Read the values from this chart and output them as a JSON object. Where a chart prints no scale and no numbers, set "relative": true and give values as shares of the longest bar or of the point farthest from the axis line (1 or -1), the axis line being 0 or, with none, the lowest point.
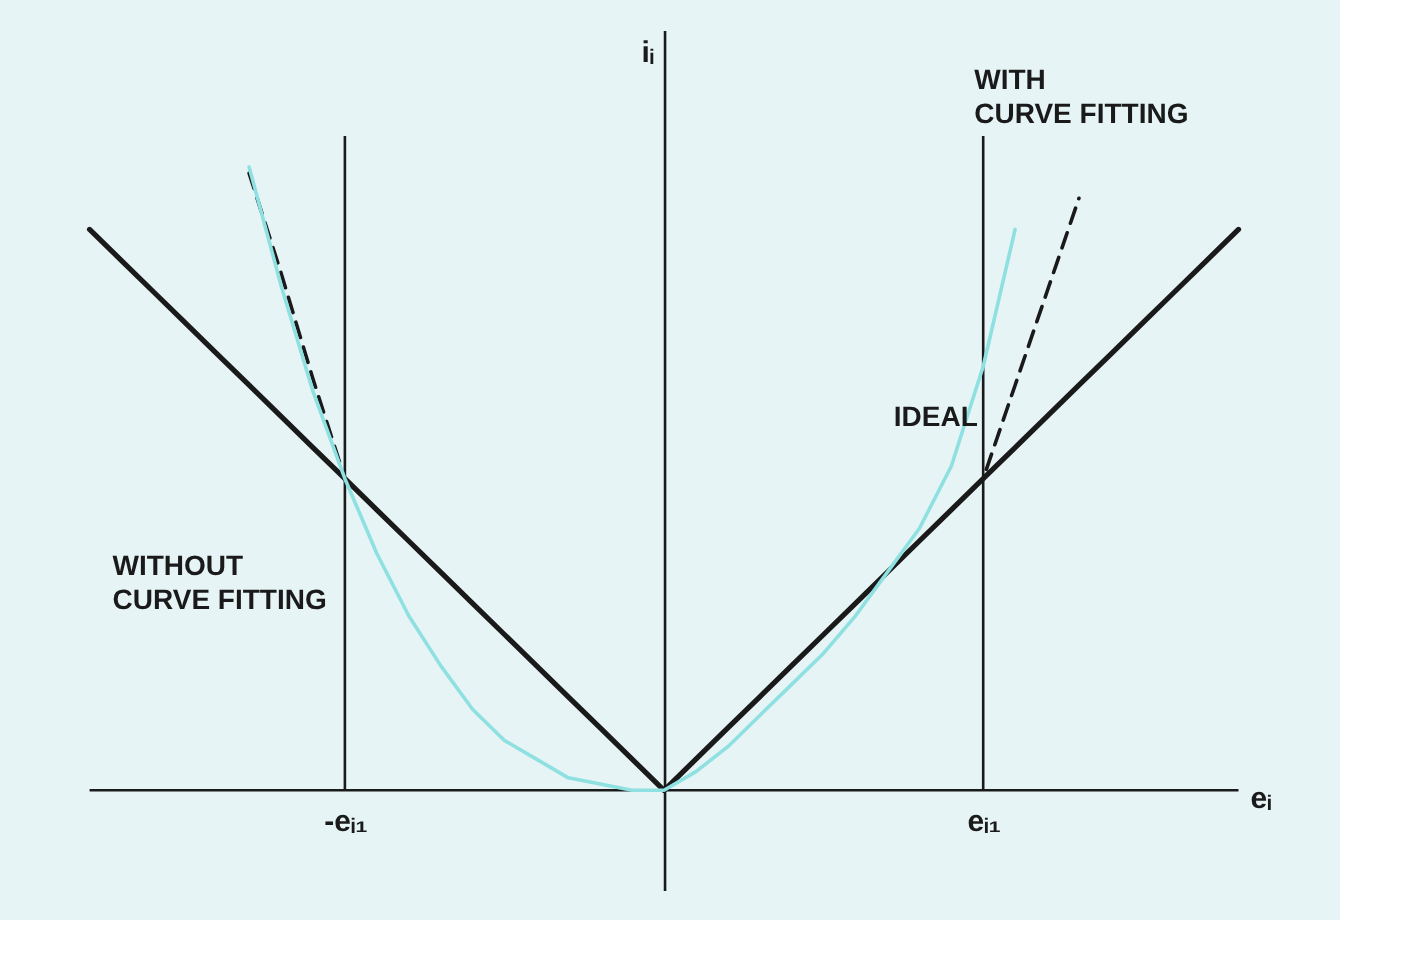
{
  "chart_data": {
    "type": "line",
    "relative": true,
    "xlabel": "eᵢ",
    "ylabel": "iᵢ",
    "categories": [
      null,
      null,
      null,
      null,
      null,
      null,
      null,
      null,
      "-eᵢ₁",
      null,
      null,
      null,
      null,
      null,
      null,
      null,
      null,
      null,
      null,
      null,
      null,
      null,
      null,
      null,
      null,
      null,
      null,
      null,
      "eᵢ₁",
      null,
      null,
      null,
      null,
      null,
      null,
      null,
      null
    ],
    "grid": "x",
    "series": [
      {
        "color": "#1a1a1a",
        "line_style": "solid",
        "values": [
          0.9,
          0.85,
          0.8,
          0.75,
          0.7,
          0.65,
          0.6,
          0.55,
          0.5,
          0.45,
          0.4,
          0.35,
          0.3,
          0.25,
          0.2,
          0.15,
          0.1,
          0.05,
          0,
          0.05,
          0.1,
          0.15,
          0.2,
          0.25,
          0.3,
          0.35,
          0.4,
          0.45,
          0.5,
          0.55,
          0.6,
          0.65,
          0.7,
          0.75,
          0.8,
          0.85,
          0.9
        ]
      },
      {
        "color": "#1a1a1a",
        "line_style": "dashed",
        "values": [
          null,
          null,
          null,
          null,
          null,
          0.99,
          0.83,
          0.66,
          0.5,
          0.45,
          0.4,
          0.35,
          0.3,
          0.25,
          0.2,
          0.15,
          0.1,
          0.05,
          0,
          0.05,
          0.1,
          0.15,
          0.2,
          0.25,
          0.3,
          0.35,
          0.4,
          0.45,
          0.5,
          0.65,
          0.8,
          0.95,
          null,
          null,
          null,
          null,
          null
        ]
      },
      {
        "color": "#8fe0e0",
        "line_style": "solid",
        "values": [
          null,
          null,
          null,
          null,
          null,
          1.0,
          0.81,
          0.64,
          0.5,
          0.38,
          0.28,
          0.2,
          0.13,
          0.08,
          0.05,
          0.02,
          0.01,
          0,
          0,
          0.03,
          0.07,
          0.12,
          0.17,
          0.22,
          0.28,
          0.35,
          0.42,
          0.52,
          0.68,
          0.9,
          null,
          null,
          null,
          null,
          null,
          null,
          null
        ]
      }
    ],
    "annotations": [
      "WITH\nCURVE FITTING",
      "IDEAL",
      "WITHOUT\nCURVE FITTING"
    ]
  }
}
